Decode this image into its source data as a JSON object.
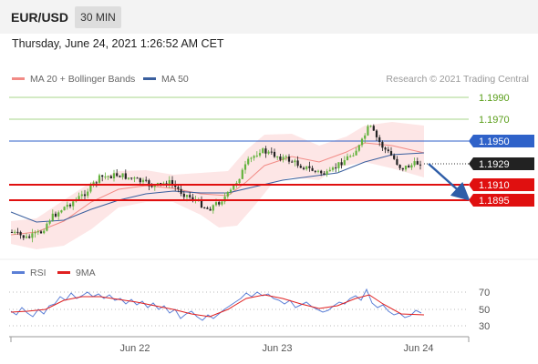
{
  "header": {
    "symbol": "EUR/USD",
    "timeframe": "30 MIN"
  },
  "datetime": "Thursday, June 24, 2021 1:26:52 AM CET",
  "legend": {
    "items": [
      {
        "label": "MA 20 + Bollinger Bands",
        "color": "#f28b86"
      },
      {
        "label": "MA 50",
        "color": "#3a5f9e"
      }
    ],
    "credit": "Research © 2021 Trading Central"
  },
  "price_levels": [
    {
      "label": "1.1990",
      "type": "target"
    },
    {
      "label": "1.1970",
      "type": "target"
    },
    {
      "label": "1.1950",
      "type": "pivot"
    },
    {
      "label": "1.1929",
      "type": "last"
    },
    {
      "label": "1.1910",
      "type": "support"
    },
    {
      "label": "1.1895",
      "type": "support"
    }
  ],
  "rsi_legend": {
    "items": [
      {
        "label": "RSI",
        "color": "#5b7fd6"
      },
      {
        "label": "9MA",
        "color": "#e02020"
      }
    ]
  },
  "rsi_levels": [
    "70",
    "50",
    "30"
  ],
  "x_labels": [
    "Jun 22",
    "Jun 23",
    "Jun 24"
  ],
  "colors": {
    "target": "#5a9e1a",
    "pivot": "#2f62c9",
    "support": "#e01010",
    "last": "#333333",
    "bull_candle": "#63b33d",
    "bear_candle": "#222222",
    "arrow": "#2f5ea8"
  }
}
